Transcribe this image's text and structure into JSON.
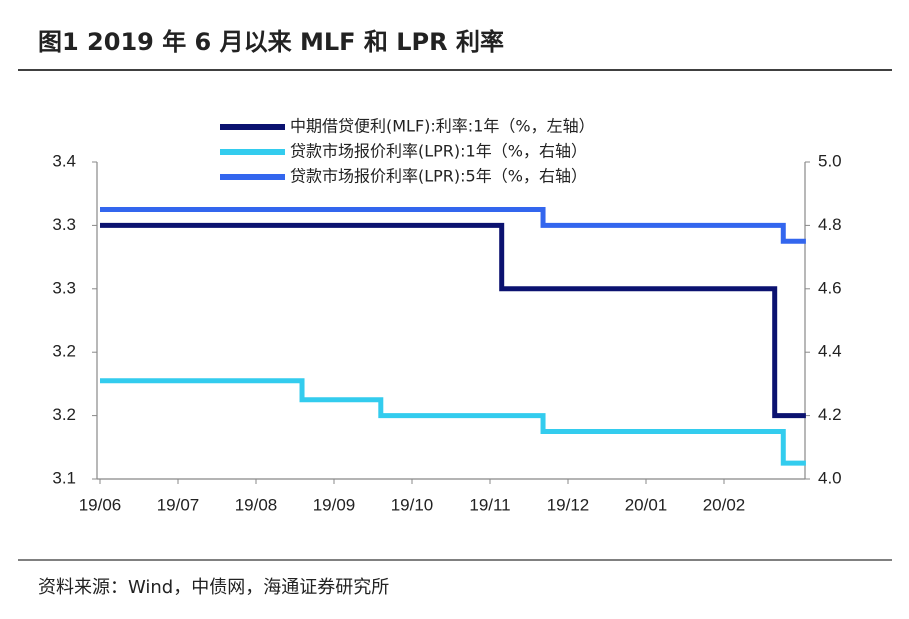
{
  "chart_data": {
    "type": "line",
    "title": "图1  2019 年 6 月以来 MLF 和 LPR 利率",
    "source": "资料来源：Wind，中债网，海通证券研究所",
    "xlim": [
      0,
      9.05
    ],
    "xticks": [
      {
        "value": 0,
        "label": "19/06"
      },
      {
        "value": 1,
        "label": "19/07"
      },
      {
        "value": 2,
        "label": "19/08"
      },
      {
        "value": 3,
        "label": "19/09"
      },
      {
        "value": 4,
        "label": "19/10"
      },
      {
        "value": 5,
        "label": "19/11"
      },
      {
        "value": 6,
        "label": "19/12"
      },
      {
        "value": 7,
        "label": "20/01"
      },
      {
        "value": 8,
        "label": "20/02"
      }
    ],
    "ylim": [
      3.1,
      3.35
    ],
    "yticks": [
      {
        "value": 3.1,
        "label": "3.1"
      },
      {
        "value": 3.15,
        "label": "3.2"
      },
      {
        "value": 3.2,
        "label": "3.2"
      },
      {
        "value": 3.25,
        "label": "3.3"
      },
      {
        "value": 3.3,
        "label": "3.3"
      },
      {
        "value": 3.35,
        "label": "3.4"
      }
    ],
    "y2lim": [
      4.0,
      5.0
    ],
    "y2ticks": [
      {
        "value": 4.0,
        "label": "4.0"
      },
      4.2,
      4.4,
      4.6,
      4.8,
      {
        "value": 5.0,
        "label": "5.0"
      }
    ],
    "series": [
      {
        "name": "中期借贷便利(MLF):利率:1年（%，左轴）",
        "color": "#0b1270",
        "x": [
          0,
          5.15,
          5.15,
          8.65,
          8.65,
          9.05
        ],
        "values": [
          3.3,
          3.3,
          3.25,
          3.25,
          3.15,
          3.15
        ]
      },
      {
        "name": "贷款市场报价利率(LPR):1年（%，右轴）",
        "color": "#33ccee",
        "axis": "y2",
        "x": [
          0,
          2.59,
          2.59,
          3.6,
          3.6,
          5.68,
          5.68,
          8.76,
          8.76,
          9.05
        ],
        "values": [
          4.31,
          4.31,
          4.25,
          4.25,
          4.2,
          4.2,
          4.15,
          4.15,
          4.05,
          4.05
        ]
      },
      {
        "name": "贷款市场报价利率(LPR):5年（%，右轴）",
        "color": "#3366ee",
        "axis": "y2",
        "x": [
          0,
          5.68,
          5.68,
          8.76,
          8.76,
          9.05
        ],
        "values": [
          4.85,
          4.85,
          4.8,
          4.8,
          4.75,
          4.75
        ]
      }
    ]
  }
}
